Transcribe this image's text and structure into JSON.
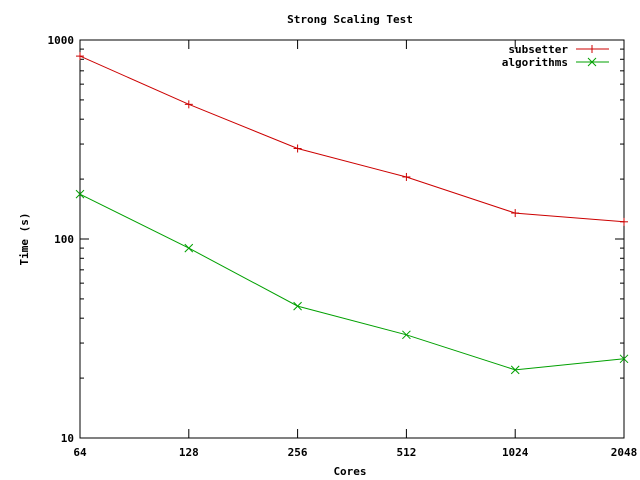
{
  "chart_data": {
    "type": "line",
    "title": "Strong Scaling Test",
    "xlabel": "Cores",
    "ylabel": "Time (s)",
    "x_scale": "log2",
    "y_scale": "log10",
    "x": [
      64,
      128,
      256,
      512,
      1024,
      2048
    ],
    "x_tick_labels": [
      "64",
      "128",
      "256",
      "512",
      "1024",
      "2048"
    ],
    "ylim": [
      10,
      1000
    ],
    "y_ticks": [
      10,
      100,
      1000
    ],
    "y_tick_labels": [
      "10",
      "100",
      "1000"
    ],
    "legend_position": "top-right",
    "grid": false,
    "series": [
      {
        "name": "subsetter",
        "color": "#cc0000",
        "marker": "plus",
        "values": [
          830,
          475,
          285,
          205,
          135,
          122
        ]
      },
      {
        "name": "algorithms",
        "color": "#00a000",
        "marker": "cross",
        "values": [
          168,
          90,
          46,
          33,
          22,
          25
        ]
      }
    ]
  }
}
